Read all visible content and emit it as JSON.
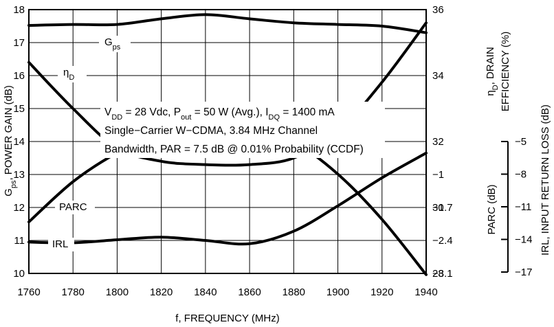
{
  "chart_data": [
    {
      "type": "line",
      "xlabel": "f, FREQUENCY (MHz)",
      "x_ticks": [
        1760,
        1780,
        1800,
        1820,
        1840,
        1860,
        1880,
        1900,
        1920,
        1940
      ],
      "xlim": [
        1760,
        1940
      ],
      "axes": [
        {
          "id": "gain",
          "side": "left",
          "label": [
            "G",
            "ps",
            ", POWER GAIN (dB)"
          ],
          "ylim": [
            10,
            18
          ],
          "ticks": [
            "10",
            "11",
            "12",
            "13",
            "14",
            "15",
            "16",
            "17",
            "18"
          ]
        },
        {
          "id": "eff",
          "side": "right",
          "label_line1": [
            "η",
            "D",
            ", DRAIN"
          ],
          "label_line2": "EFFICIENCY (%)",
          "ylim": [
            28,
            36
          ],
          "ticks": [
            "28",
            "30",
            "32",
            "34",
            "36"
          ]
        },
        {
          "id": "parc",
          "side": "right",
          "label": "PARC (dB)",
          "ylim": [
            -3.1,
            -1.0
          ],
          "ticks": [
            "−3.1",
            "−2.4",
            "−1.7",
            "−1"
          ]
        },
        {
          "id": "irl",
          "side": "far-right",
          "label": "IRL, INPUT RETURN LOSS (dB)",
          "ylim": [
            -17,
            -5
          ],
          "ticks": [
            "−17",
            "−14",
            "−11",
            "−8",
            "−5"
          ]
        }
      ],
      "series": [
        {
          "name": [
            "G",
            "ps"
          ],
          "axis": "gain",
          "x": [
            1760,
            1780,
            1800,
            1820,
            1840,
            1860,
            1880,
            1900,
            1920,
            1940
          ],
          "y": [
            17.52,
            17.55,
            17.55,
            17.72,
            17.85,
            17.72,
            17.6,
            17.55,
            17.5,
            17.3
          ]
        },
        {
          "name": [
            "η",
            "D"
          ],
          "axis": "eff",
          "x": [
            1760,
            1780,
            1800,
            1820,
            1840,
            1860,
            1880,
            1900,
            1920,
            1940
          ],
          "y": [
            34.4,
            33.0,
            31.8,
            31.4,
            31.3,
            31.3,
            31.5,
            32.3,
            33.8,
            35.6
          ]
        },
        {
          "name": [
            "PARC"
          ],
          "axis": "parc",
          "x": [
            1760,
            1780,
            1800,
            1820,
            1840,
            1860,
            1880,
            1900,
            1920,
            1940
          ],
          "y": [
            -2.69,
            -2.37,
            -2.14,
            -1.98,
            -1.9,
            -1.92,
            -2.05,
            -2.31,
            -2.67,
            -3.11
          ]
        },
        {
          "name": [
            "IRL"
          ],
          "axis": "gain",
          "x": [
            1760,
            1780,
            1800,
            1820,
            1840,
            1860,
            1880,
            1900,
            1920,
            1940
          ],
          "y": [
            10.95,
            10.93,
            11.02,
            11.1,
            11.0,
            10.9,
            11.28,
            12.05,
            12.9,
            13.65
          ]
        }
      ],
      "annotation_lines": [
        [
          {
            "t": "V",
            "sub": false
          },
          {
            "t": "DD",
            "sub": true
          },
          {
            "t": " = 28 Vdc, P",
            "sub": false
          },
          {
            "t": "out",
            "sub": true
          },
          {
            "t": " = 50 W (Avg.), I",
            "sub": false
          },
          {
            "t": "DQ",
            "sub": true
          },
          {
            "t": " = 1400 mA",
            "sub": false
          }
        ],
        [
          {
            "t": "Single−Carrier W−CDMA, 3.84 MHz Channel",
            "sub": false
          }
        ],
        [
          {
            "t": "Bandwidth, PAR = 7.5 dB @ 0.01% Probability (CCDF)",
            "sub": false
          }
        ]
      ],
      "grid": true
    }
  ]
}
